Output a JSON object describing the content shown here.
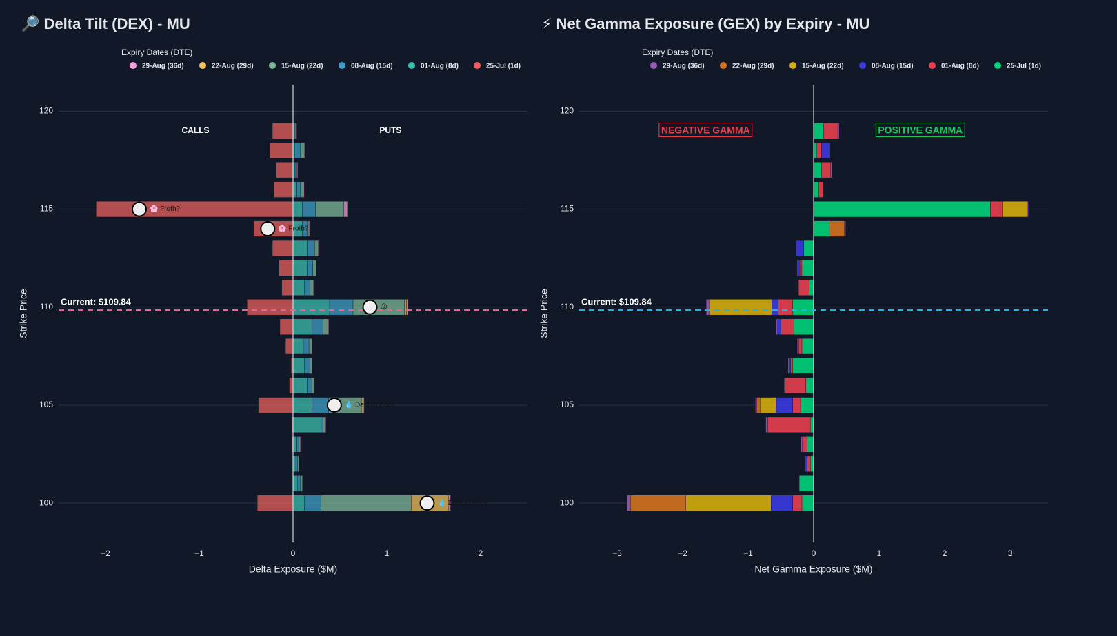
{
  "chart_data": [
    {
      "type": "bar",
      "orientation": "h",
      "barmode": "relative",
      "title": "🔎 Delta Tilt (DEX) - MU",
      "x_label": "Delta Exposure ($M)",
      "y_label": "Strike Price",
      "legend_title": "Expiry Dates (DTE)",
      "y": [
        100,
        101,
        102,
        103,
        104,
        105,
        106,
        107,
        108,
        109,
        110,
        111,
        112,
        113,
        114,
        115,
        116,
        117,
        118,
        119
      ],
      "series": [
        {
          "name": "29-Aug (36d)",
          "color": "#f59ad8",
          "values": [
            0.02,
            0,
            0,
            0.01,
            0.01,
            0.01,
            0,
            0,
            0,
            0.01,
            0.02,
            0.01,
            0,
            0.01,
            0.01,
            0.04,
            0.01,
            0.01,
            0.01,
            0.01
          ]
        },
        {
          "name": "22-Aug (29d)",
          "color": "#f0c05a",
          "values": [
            0.4,
            0,
            0,
            0,
            0,
            0.02,
            0,
            0,
            0,
            0,
            0.02,
            0,
            0,
            0,
            0,
            0,
            0,
            0,
            0,
            0
          ]
        },
        {
          "name": "15-Aug (22d)",
          "color": "#7fb89a",
          "values": [
            0.96,
            0.02,
            0.01,
            0.02,
            0.02,
            0.35,
            0.03,
            0.02,
            0.03,
            0.05,
            0.55,
            0.04,
            0.04,
            0.04,
            0.02,
            0.3,
            0.03,
            0.01,
            0.04,
            0.01
          ]
        },
        {
          "name": "08-Aug (15d)",
          "color": "#3fa0c8",
          "values": [
            0.18,
            0.03,
            0.02,
            0.02,
            0.02,
            0.18,
            0.05,
            0.06,
            0.06,
            0.12,
            0.25,
            0.06,
            0.06,
            0.08,
            0.05,
            0.14,
            0.04,
            0.01,
            0.06,
            0.01
          ]
        },
        {
          "name": "01-Aug (8d)",
          "color": "#3cbfb0",
          "values": [
            0.12,
            0.05,
            0.03,
            0.04,
            0.3,
            0.2,
            0.15,
            0.12,
            0.11,
            0.2,
            0.39,
            0.12,
            0.15,
            0.15,
            0.1,
            0.1,
            0.04,
            0.02,
            0.02,
            0.01
          ]
        },
        {
          "name": "25-Jul (1d)",
          "color": "#e8605f",
          "values": [
            -0.38,
            0,
            0,
            -0.01,
            -0.01,
            -0.37,
            -0.04,
            -0.02,
            -0.08,
            -0.14,
            -0.49,
            -0.12,
            -0.15,
            -0.22,
            -0.42,
            -2.1,
            -0.2,
            -0.18,
            -0.25,
            -0.22
          ]
        }
      ],
      "bar_opacity": 0.75,
      "xlim": [
        -2.5,
        2.5
      ],
      "xticks": [
        {
          "value": -2,
          "label": "−2"
        },
        {
          "value": -1,
          "label": "−1"
        },
        0,
        1,
        2
      ],
      "ylim": [
        98,
        121.35
      ],
      "yticks": [
        100,
        105,
        110,
        115,
        120
      ],
      "grid": true,
      "current_price": 109.84,
      "current_label": "Current: $109.84",
      "current_color": "#f06090",
      "annotations": [
        {
          "text": "CALLS",
          "x": -1.04,
          "y": 119
        },
        {
          "text": "PUTS",
          "x": 1.04,
          "y": 119
        }
      ],
      "markers": [
        {
          "x": -1.64,
          "y": 115,
          "text": "🌸 Froth?"
        },
        {
          "x": -0.27,
          "y": 114,
          "text": "🌸 Froth?"
        },
        {
          "x": 0.82,
          "y": 110,
          "text": "😜"
        },
        {
          "x": 0.44,
          "y": 105,
          "text": "💧 Defend Price"
        },
        {
          "x": 1.43,
          "y": 100,
          "text": "💧 Defend Price"
        }
      ]
    },
    {
      "type": "bar",
      "orientation": "h",
      "barmode": "relative",
      "title": "⚡ Net Gamma Exposure (GEX) by Expiry - MU",
      "x_label": "Net Gamma Exposure ($M)",
      "y_label": "Strike Price",
      "legend_title": "Expiry Dates (DTE)",
      "y": [
        100,
        101,
        102,
        103,
        104,
        105,
        106,
        107,
        108,
        109,
        110,
        111,
        112,
        113,
        114,
        115,
        116,
        117,
        118,
        119
      ],
      "series": [
        {
          "name": "29-Aug (36d)",
          "color": "#9b59b6",
          "values": [
            -0.05,
            0,
            -0.01,
            -0.03,
            -0.03,
            -0.02,
            -0.01,
            -0.02,
            -0.02,
            -0.02,
            -0.05,
            0,
            -0.01,
            0,
            0.02,
            0.02,
            0,
            0.02,
            0.01,
            0.02
          ]
        },
        {
          "name": "22-Aug (29d)",
          "color": "#d4731f",
          "values": [
            -0.85,
            0,
            0,
            0,
            0,
            -0.05,
            0,
            0,
            0,
            0,
            0,
            0,
            0,
            0,
            0.23,
            0,
            0,
            0,
            0,
            0
          ]
        },
        {
          "name": "15-Aug (22d)",
          "color": "#d4ac0d",
          "values": [
            -1.3,
            0,
            0,
            0,
            0,
            -0.25,
            0,
            0,
            0,
            0,
            -0.95,
            0,
            0,
            0,
            0,
            0.38,
            0,
            0,
            0,
            0
          ]
        },
        {
          "name": "08-Aug (15d)",
          "color": "#3a3ae0",
          "values": [
            -0.33,
            0,
            -0.03,
            0,
            0,
            -0.25,
            0,
            -0.02,
            0,
            -0.05,
            -0.1,
            0,
            -0.03,
            -0.12,
            0,
            0,
            0,
            0,
            0.12,
            0
          ]
        },
        {
          "name": "01-Aug (8d)",
          "color": "#e8404f",
          "values": [
            -0.14,
            0,
            -0.05,
            -0.07,
            -0.65,
            -0.12,
            -0.32,
            -0.03,
            -0.05,
            -0.2,
            -0.22,
            -0.16,
            -0.03,
            0,
            0,
            0.18,
            0.07,
            0.14,
            0.07,
            0.22
          ]
        },
        {
          "name": "25-Jul (1d)",
          "color": "#00d27a",
          "values": [
            -0.18,
            -0.22,
            -0.05,
            -0.1,
            -0.05,
            -0.2,
            -0.12,
            -0.32,
            -0.18,
            -0.3,
            -0.32,
            -0.07,
            -0.18,
            -0.15,
            0.24,
            2.7,
            0.08,
            0.12,
            0.05,
            0.15
          ]
        }
      ],
      "bar_opacity": 0.9,
      "xlim": [
        -3.58,
        3.58
      ],
      "xticks": [
        {
          "value": -3,
          "label": "−3"
        },
        {
          "value": -2,
          "label": "−2"
        },
        {
          "value": -1,
          "label": "−1"
        },
        0,
        1,
        2,
        3
      ],
      "ylim": [
        98,
        121.35
      ],
      "yticks": [
        100,
        105,
        110,
        115,
        120
      ],
      "grid": true,
      "current_price": 109.84,
      "current_label": "Current: $109.84",
      "current_color": "#1eb4e6",
      "annotations": [
        {
          "text": "NEGATIVE GAMMA",
          "x": -1.65,
          "y": 119,
          "color": "#e8404f",
          "box": true
        },
        {
          "text": "POSITIVE GAMMA",
          "x": 1.63,
          "y": 119,
          "color": "#22c55e",
          "box": true
        }
      ],
      "markers": []
    }
  ]
}
